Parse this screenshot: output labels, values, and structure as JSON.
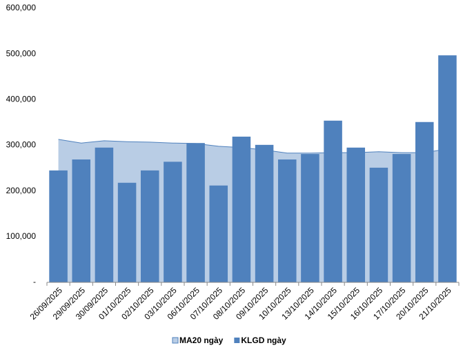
{
  "chart_data": {
    "type": "bar",
    "categories": [
      "26/09/2025",
      "29/09/2025",
      "30/09/2025",
      "01/10/2025",
      "02/10/2025",
      "03/10/2025",
      "06/10/2025",
      "07/10/2025",
      "08/10/2025",
      "09/10/2025",
      "10/10/2025",
      "13/10/2025",
      "14/10/2025",
      "15/10/2025",
      "16/10/2025",
      "17/10/2025",
      "20/10/2025",
      "21/10/2025"
    ],
    "series": [
      {
        "name": "MA20 ngày",
        "type": "area",
        "color": "#b9cde5",
        "line_color": "#4f81bd",
        "values": [
          313000,
          305000,
          310000,
          308000,
          307000,
          305000,
          304000,
          298000,
          295000,
          290000,
          283000,
          283000,
          284000,
          284000,
          286000,
          284000,
          284000,
          292000
        ]
      },
      {
        "name": "KLGD ngày",
        "type": "bar",
        "color": "#4f81bd",
        "values": [
          245000,
          269000,
          295000,
          218000,
          245000,
          264000,
          305000,
          212000,
          319000,
          301000,
          269000,
          281000,
          354000,
          295000,
          251000,
          281000,
          351000,
          497000
        ]
      }
    ],
    "ylim": [
      0,
      600000
    ],
    "yticks": [
      {
        "value": 0,
        "label": "-"
      },
      {
        "value": 100000,
        "label": "100,000"
      },
      {
        "value": 200000,
        "label": "200,000"
      },
      {
        "value": 300000,
        "label": "300,000"
      },
      {
        "value": 400000,
        "label": "400,000"
      },
      {
        "value": 500000,
        "label": "500,000"
      },
      {
        "value": 600000,
        "label": "600,000"
      }
    ],
    "grid": false,
    "legend": "bottom"
  }
}
